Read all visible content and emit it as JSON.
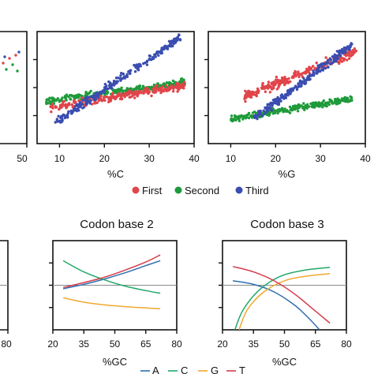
{
  "colors": {
    "first": "#e0454a",
    "second": "#1e9a3a",
    "third": "#3a4db0",
    "A": "#2f6eb0",
    "C": "#22a86a",
    "G": "#f0a830",
    "T": "#d43c4a"
  },
  "legend_top": {
    "first": "First",
    "second": "Second",
    "third": "Third"
  },
  "legend_bottom": {
    "A": "A",
    "C": "C",
    "G": "G",
    "T": "T"
  },
  "chart_data": [
    {
      "id": "scatter-partial-left",
      "type": "scatter",
      "xlim": [
        0,
        50
      ],
      "x_ticks": [
        "50"
      ],
      "note_series": [
        "First",
        "Second",
        "Third"
      ]
    },
    {
      "id": "scatter-C",
      "type": "scatter",
      "xlabel": "%C",
      "xlim": [
        5,
        40
      ],
      "ylim": [
        0,
        100
      ],
      "x_ticks": [
        "10",
        "20",
        "30",
        "40"
      ],
      "series": [
        {
          "name": "First",
          "x_range": [
            8,
            38
          ],
          "y_start": 32,
          "y_end": 52,
          "spread": 6
        },
        {
          "name": "Second",
          "x_range": [
            7,
            38
          ],
          "y_start": 38,
          "y_end": 55,
          "spread": 5
        },
        {
          "name": "Third",
          "x_range": [
            9,
            37
          ],
          "y_start": 18,
          "y_end": 95,
          "spread": 6
        }
      ]
    },
    {
      "id": "scatter-G",
      "type": "scatter",
      "xlabel": "%G",
      "xlim": [
        5,
        40
      ],
      "ylim": [
        0,
        100
      ],
      "x_ticks": [
        "10",
        "20",
        "30",
        "40"
      ],
      "series": [
        {
          "name": "First",
          "x_range": [
            13,
            38
          ],
          "y_start": 42,
          "y_end": 82,
          "spread": 7
        },
        {
          "name": "Second",
          "x_range": [
            10,
            37
          ],
          "y_start": 22,
          "y_end": 40,
          "spread": 5
        },
        {
          "name": "Third",
          "x_range": [
            15,
            37
          ],
          "y_start": 22,
          "y_end": 88,
          "spread": 6
        }
      ]
    },
    {
      "id": "codon-base-1-partial",
      "type": "line",
      "xlim": [
        20,
        80
      ],
      "x_ticks": [
        "80"
      ]
    },
    {
      "id": "codon-base-2",
      "type": "line",
      "title": "Codon base 2",
      "xlabel": "%GC",
      "xlim": [
        20,
        80
      ],
      "ylim": [
        -1,
        1
      ],
      "reference_y": 0,
      "x_ticks": [
        "20",
        "35",
        "50",
        "65",
        "80"
      ],
      "series": [
        {
          "name": "A",
          "x": [
            25,
            35,
            45,
            55,
            65,
            72
          ],
          "y": [
            -0.08,
            0.02,
            0.14,
            0.28,
            0.44,
            0.55
          ]
        },
        {
          "name": "C",
          "x": [
            25,
            35,
            45,
            55,
            65,
            72
          ],
          "y": [
            0.55,
            0.3,
            0.12,
            -0.02,
            -0.12,
            -0.18
          ]
        },
        {
          "name": "G",
          "x": [
            25,
            35,
            45,
            55,
            65,
            72
          ],
          "y": [
            -0.28,
            -0.38,
            -0.44,
            -0.48,
            -0.51,
            -0.53
          ]
        },
        {
          "name": "T",
          "x": [
            25,
            35,
            45,
            55,
            65,
            72
          ],
          "y": [
            -0.05,
            0.06,
            0.18,
            0.34,
            0.52,
            0.68
          ]
        }
      ]
    },
    {
      "id": "codon-base-3",
      "type": "line",
      "title": "Codon base 3",
      "xlabel": "%GC",
      "xlim": [
        20,
        80
      ],
      "ylim": [
        -1,
        1
      ],
      "reference_y": 0,
      "x_ticks": [
        "20",
        "35",
        "50",
        "65",
        "80"
      ],
      "series": [
        {
          "name": "A",
          "x": [
            25,
            35,
            45,
            55,
            62,
            67
          ],
          "y": [
            0.1,
            0.02,
            -0.15,
            -0.45,
            -0.75,
            -1.0
          ]
        },
        {
          "name": "C",
          "x": [
            26,
            30,
            38,
            48,
            60,
            72
          ],
          "y": [
            -1.0,
            -0.55,
            -0.1,
            0.2,
            0.34,
            0.4
          ]
        },
        {
          "name": "G",
          "x": [
            28,
            32,
            40,
            50,
            60,
            72
          ],
          "y": [
            -1.0,
            -0.55,
            -0.15,
            0.1,
            0.2,
            0.26
          ]
        },
        {
          "name": "T",
          "x": [
            25,
            35,
            45,
            55,
            65,
            72
          ],
          "y": [
            0.42,
            0.3,
            0.1,
            -0.2,
            -0.58,
            -0.85
          ]
        }
      ]
    }
  ]
}
